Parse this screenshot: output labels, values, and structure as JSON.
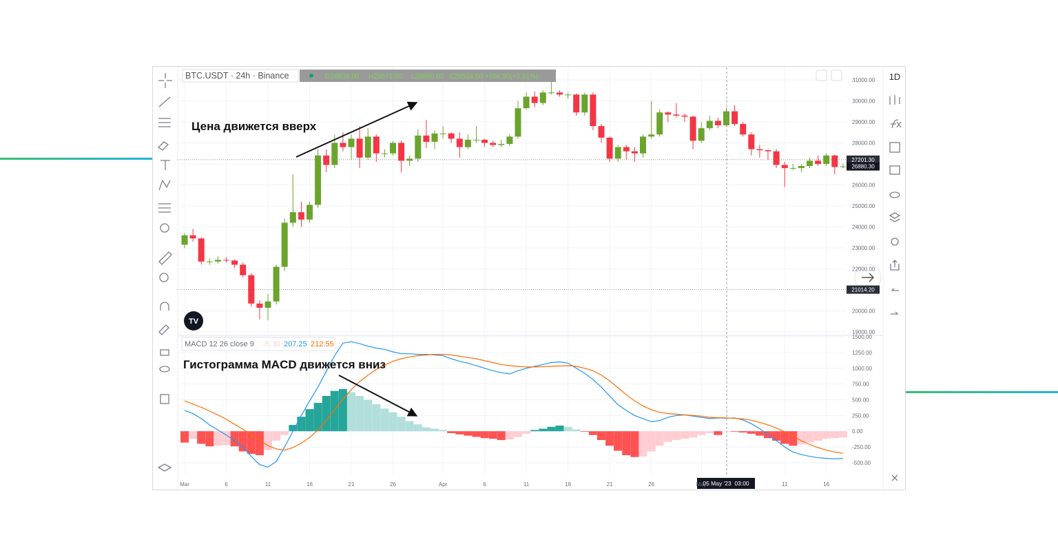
{
  "chart_data": [
    {
      "type": "candlestick",
      "symbol": "BTC.USDT · 24h · Binance",
      "ohlc_labels": [
        "O28838.00",
        "H29672.00",
        "L28800.00",
        "C29504.50",
        "+666.50(+2.31%)"
      ],
      "annotation": "Цена движется вверх",
      "interval": "1D",
      "crosshair_label": "05 May '23  03:00",
      "colors": {
        "up": "#6ba42c",
        "down": "#f23645"
      },
      "open": [
        23150,
        23600,
        23450,
        22350,
        22350,
        22430,
        22400,
        22200,
        21700,
        20350,
        20150,
        20450,
        22100,
        24200,
        24700,
        24350,
        25050,
        27400,
        26950,
        28000,
        27800,
        28200,
        27300,
        28300,
        27500,
        27500,
        28000,
        27150,
        27250,
        28350,
        28050,
        28450,
        28450,
        28200,
        27800,
        28150,
        28150,
        28000,
        27900,
        27950,
        28300,
        29650,
        30200,
        29900,
        30400,
        30400,
        30300,
        30300,
        29450,
        30300,
        28800,
        28250,
        27250,
        27800,
        27600,
        27500,
        28300,
        28400,
        29450,
        29350,
        29300,
        29250,
        28100,
        28700,
        29050,
        28838,
        29504.5,
        28900,
        28400,
        27700,
        27650,
        27600,
        26950,
        26800,
        26800,
        26900,
        27150,
        27000,
        27400,
        26850
      ],
      "high": [
        23700,
        23900,
        23500,
        22500,
        22600,
        22550,
        22450,
        22300,
        21800,
        20500,
        20800,
        22200,
        24400,
        26500,
        25200,
        25200,
        27700,
        27700,
        28400,
        28500,
        28400,
        28800,
        28700,
        28400,
        27700,
        28100,
        28100,
        27400,
        28650,
        29100,
        28600,
        28800,
        28500,
        28500,
        28400,
        28800,
        28200,
        28100,
        28150,
        28400,
        30000,
        30400,
        30450,
        30500,
        30900,
        30500,
        30400,
        30350,
        30400,
        30400,
        28900,
        28300,
        27900,
        27900,
        27800,
        28400,
        30000,
        29600,
        29500,
        29900,
        29400,
        29300,
        29000,
        29300,
        29200,
        29672,
        29800,
        29000,
        28500,
        27900,
        27700,
        27700,
        27100,
        27000,
        27000,
        27300,
        27400,
        27500,
        27450,
        27000
      ],
      "low": [
        23000,
        23300,
        22200,
        22200,
        22250,
        22300,
        22050,
        21600,
        20200,
        19600,
        19550,
        20300,
        21900,
        24000,
        24000,
        24200,
        24900,
        26600,
        26800,
        27600,
        27200,
        26800,
        27200,
        27100,
        27300,
        27400,
        26600,
        26900,
        27100,
        27750,
        27700,
        28200,
        28000,
        27300,
        27700,
        28000,
        27800,
        27800,
        27800,
        27850,
        28200,
        29600,
        29700,
        29800,
        30300,
        30200,
        30100,
        29300,
        29300,
        28600,
        28000,
        27100,
        27100,
        27200,
        27100,
        27300,
        28200,
        28300,
        29000,
        29200,
        29000,
        27700,
        28000,
        28600,
        28700,
        28800,
        28800,
        28300,
        27400,
        27300,
        27200,
        26800,
        25900,
        26700,
        26600,
        26800,
        26900,
        26900,
        26500,
        26800
      ],
      "close": [
        23600,
        23450,
        22350,
        22350,
        22430,
        22400,
        22200,
        21700,
        20350,
        20150,
        20450,
        22100,
        24200,
        24700,
        24350,
        25050,
        27400,
        26950,
        28000,
        27800,
        28200,
        27300,
        28300,
        27500,
        27500,
        28000,
        27150,
        27250,
        28350,
        28050,
        28450,
        28450,
        28200,
        27800,
        28150,
        28150,
        28000,
        27900,
        27950,
        28300,
        29650,
        30200,
        29900,
        30400,
        30400,
        30300,
        30300,
        29450,
        30300,
        28800,
        28250,
        27250,
        27800,
        27600,
        27500,
        28300,
        28400,
        29450,
        29350,
        29300,
        29250,
        28100,
        28700,
        29050,
        28838,
        29504.5,
        28900,
        28400,
        27700,
        27650,
        27600,
        26950,
        26800,
        26800,
        26900,
        27150,
        27000,
        27400,
        26850,
        26880
      ],
      "ylim": [
        18870,
        31590
      ],
      "yticks": [
        {
          "value": 31000,
          "label": "31000.00"
        },
        {
          "value": 30000,
          "label": "30000.00"
        },
        {
          "value": 29000,
          "label": "29000.00"
        },
        {
          "value": 28000,
          "label": "28000.00"
        },
        {
          "value": 27000,
          "label": "27000.00"
        },
        {
          "value": 26000,
          "label": "26000.00"
        },
        {
          "value": 25000,
          "label": "25000.00"
        },
        {
          "value": 24000,
          "label": "24000.00"
        },
        {
          "value": 23000,
          "label": "23000.00"
        },
        {
          "value": 22000,
          "label": "22000.00"
        },
        {
          "value": 20000,
          "label": "20000.00"
        },
        {
          "value": 19000,
          "label": "19000.00"
        }
      ],
      "price_lines": [
        {
          "value": 27201.3,
          "label": "27201.30"
        },
        {
          "value": 21014.2,
          "label": "21014.20"
        }
      ],
      "last_price": {
        "value": 26880.3,
        "label": "26880.30"
      },
      "grid": true
    },
    {
      "type": "macd",
      "title": "MACD 12 26 close 9",
      "legend_values": [
        "-5.30",
        "207.25",
        "212.55"
      ],
      "annotation": "Гистограмма MACD движется вниз",
      "categories": [
        "Mar",
        null,
        null,
        null,
        null,
        "6",
        null,
        null,
        null,
        null,
        "11",
        null,
        null,
        null,
        null,
        "16",
        null,
        null,
        null,
        null,
        "21",
        null,
        null,
        null,
        null,
        "26",
        null,
        null,
        null,
        null,
        null,
        "Apr",
        null,
        null,
        null,
        null,
        "6",
        null,
        null,
        null,
        null,
        "11",
        null,
        null,
        null,
        null,
        "16",
        null,
        null,
        null,
        null,
        "21",
        null,
        null,
        null,
        null,
        "26",
        null,
        null,
        null,
        null,
        null,
        "May",
        null,
        null,
        null,
        null,
        null,
        null,
        null,
        null,
        null,
        "11",
        null,
        null,
        null,
        null,
        "16",
        null,
        null,
        null
      ],
      "histogram": {
        "colors": [
          "#26a69a",
          "#b2dfdb",
          "#ff5252",
          "#ffcdd2"
        ],
        "values": [
          -180,
          -120,
          -200,
          -240,
          -230,
          -220,
          -240,
          -320,
          -360,
          -380,
          -300,
          -150,
          -60,
          100,
          230,
          350,
          450,
          560,
          640,
          670,
          620,
          560,
          500,
          430,
          360,
          300,
          230,
          160,
          110,
          60,
          40,
          20,
          -30,
          -50,
          -70,
          -90,
          -110,
          -120,
          -140,
          -130,
          -90,
          -40,
          20,
          40,
          70,
          90,
          70,
          30,
          -10,
          -60,
          -140,
          -230,
          -310,
          -380,
          -410,
          -400,
          -320,
          -230,
          -170,
          -140,
          -120,
          -100,
          -60,
          -30,
          -60,
          -5.3,
          -10,
          -20,
          -40,
          -70,
          -110,
          -150,
          -200,
          -230,
          -210,
          -180,
          -150,
          -120,
          -110,
          -100
        ]
      },
      "macd": {
        "color": "#2196f3",
        "values": [
          330,
          280,
          200,
          100,
          20,
          -60,
          -150,
          -250,
          -400,
          -530,
          -570,
          -480,
          -250,
          0,
          250,
          480,
          700,
          950,
          1200,
          1400,
          1420,
          1390,
          1350,
          1320,
          1300,
          1260,
          1230,
          1230,
          1220,
          1220,
          1210,
          1200,
          1150,
          1110,
          1080,
          1040,
          1000,
          960,
          930,
          910,
          960,
          1000,
          1030,
          1060,
          1090,
          1100,
          1080,
          1000,
          920,
          820,
          700,
          560,
          420,
          330,
          250,
          200,
          150,
          170,
          220,
          250,
          260,
          240,
          220,
          200,
          210,
          207.25,
          210,
          180,
          120,
          40,
          -60,
          -150,
          -250,
          -330,
          -370,
          -400,
          -420,
          -430,
          -440,
          -430
        ]
      },
      "signal": {
        "color": "#ff6d00",
        "values": [
          480,
          430,
          380,
          320,
          260,
          190,
          110,
          30,
          -50,
          -140,
          -230,
          -280,
          -300,
          -260,
          -190,
          -100,
          20,
          170,
          340,
          510,
          660,
          790,
          890,
          980,
          1050,
          1110,
          1150,
          1180,
          1200,
          1210,
          1220,
          1220,
          1210,
          1190,
          1170,
          1150,
          1120,
          1090,
          1060,
          1040,
          1030,
          1020,
          1020,
          1025,
          1030,
          1035,
          1040,
          1030,
          1000,
          960,
          890,
          800,
          690,
          580,
          480,
          400,
          340,
          300,
          280,
          270,
          260,
          250,
          240,
          220,
          215,
          212.55,
          205,
          195,
          175,
          140,
          100,
          50,
          -10,
          -80,
          -150,
          -210,
          -260,
          -300,
          -330,
          -350
        ]
      },
      "ylim": [
        -675,
        1511
      ],
      "yticks": [
        {
          "value": 1500,
          "label": "1500.00"
        },
        {
          "value": 1250,
          "label": "1250.00"
        },
        {
          "value": 1000,
          "label": "1000.00"
        },
        {
          "value": 750,
          "label": "750.00"
        },
        {
          "value": 500,
          "label": "500.00"
        },
        {
          "value": 250,
          "label": "250.00"
        },
        {
          "value": 0,
          "label": "0.00"
        },
        {
          "value": -250,
          "label": "-250.00"
        },
        {
          "value": -500,
          "label": "-500.00"
        }
      ],
      "grid": true
    }
  ]
}
